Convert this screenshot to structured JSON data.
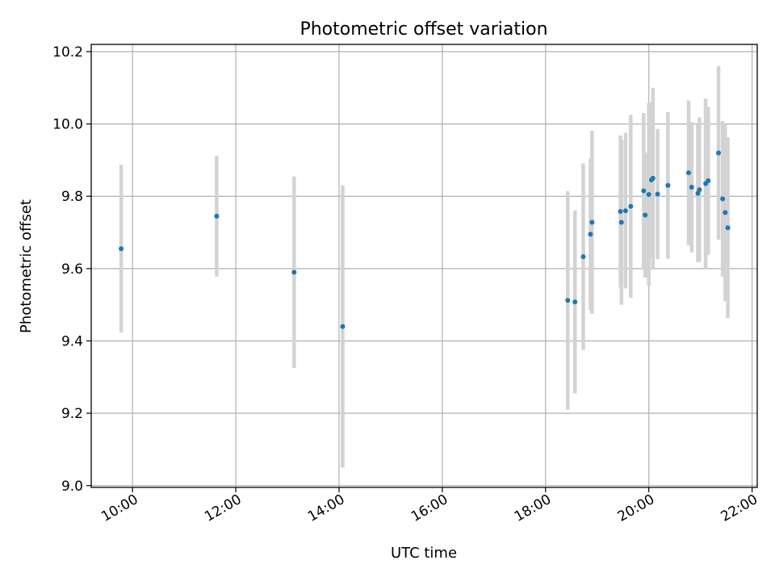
{
  "chart_data": {
    "type": "scatter",
    "title": "Photometric offset variation",
    "xlabel": "UTC time",
    "ylabel": "Photometric offset",
    "x_unit": "hours UTC",
    "xlim": [
      9.2,
      22.1
    ],
    "ylim": [
      8.995,
      10.22
    ],
    "grid": true,
    "legend": "none",
    "x_ticks": [
      {
        "value": 10,
        "label": "10:00"
      },
      {
        "value": 12,
        "label": "12:00"
      },
      {
        "value": 14,
        "label": "14:00"
      },
      {
        "value": 16,
        "label": "16:00"
      },
      {
        "value": 18,
        "label": "18:00"
      },
      {
        "value": 20,
        "label": "20:00"
      },
      {
        "value": 22,
        "label": "22:00"
      }
    ],
    "y_ticks": [
      {
        "value": 9.0,
        "label": "9.0"
      },
      {
        "value": 9.2,
        "label": "9.2"
      },
      {
        "value": 9.4,
        "label": "9.4"
      },
      {
        "value": 9.6,
        "label": "9.6"
      },
      {
        "value": 9.8,
        "label": "9.8"
      },
      {
        "value": 10.0,
        "label": "10.0"
      },
      {
        "value": 10.2,
        "label": "10.2"
      }
    ],
    "colors": {
      "points": "#1f77b4",
      "errorbars": "#d3d3d3",
      "grid": "#b0b0b0"
    },
    "points": [
      {
        "x": 9.78,
        "y": 9.655,
        "err": 0.232
      },
      {
        "x": 11.63,
        "y": 9.745,
        "err": 0.167
      },
      {
        "x": 13.13,
        "y": 9.59,
        "err": 0.265
      },
      {
        "x": 14.07,
        "y": 9.44,
        "err": 0.39
      },
      {
        "x": 18.43,
        "y": 9.512,
        "err": 0.302
      },
      {
        "x": 18.57,
        "y": 9.508,
        "err": 0.253
      },
      {
        "x": 18.73,
        "y": 9.633,
        "err": 0.258
      },
      {
        "x": 18.87,
        "y": 9.695,
        "err": 0.21
      },
      {
        "x": 18.9,
        "y": 9.728,
        "err": 0.253
      },
      {
        "x": 19.45,
        "y": 9.758,
        "err": 0.21
      },
      {
        "x": 19.47,
        "y": 9.728,
        "err": 0.228
      },
      {
        "x": 19.55,
        "y": 9.76,
        "err": 0.215
      },
      {
        "x": 19.65,
        "y": 9.772,
        "err": 0.253
      },
      {
        "x": 19.9,
        "y": 9.815,
        "err": 0.215
      },
      {
        "x": 19.93,
        "y": 9.748,
        "err": 0.173
      },
      {
        "x": 20.0,
        "y": 9.805,
        "err": 0.253
      },
      {
        "x": 20.05,
        "y": 9.845,
        "err": 0.215
      },
      {
        "x": 20.08,
        "y": 9.85,
        "err": 0.25
      },
      {
        "x": 20.17,
        "y": 9.806,
        "err": 0.18
      },
      {
        "x": 20.37,
        "y": 9.83,
        "err": 0.203
      },
      {
        "x": 20.77,
        "y": 9.865,
        "err": 0.2
      },
      {
        "x": 20.83,
        "y": 9.825,
        "err": 0.18
      },
      {
        "x": 20.95,
        "y": 9.808,
        "err": 0.19
      },
      {
        "x": 20.98,
        "y": 9.818,
        "err": 0.2
      },
      {
        "x": 21.1,
        "y": 9.835,
        "err": 0.235
      },
      {
        "x": 21.15,
        "y": 9.843,
        "err": 0.205
      },
      {
        "x": 21.35,
        "y": 9.92,
        "err": 0.24
      },
      {
        "x": 21.43,
        "y": 9.793,
        "err": 0.215
      },
      {
        "x": 21.48,
        "y": 9.755,
        "err": 0.245
      },
      {
        "x": 21.53,
        "y": 9.713,
        "err": 0.25
      }
    ]
  }
}
